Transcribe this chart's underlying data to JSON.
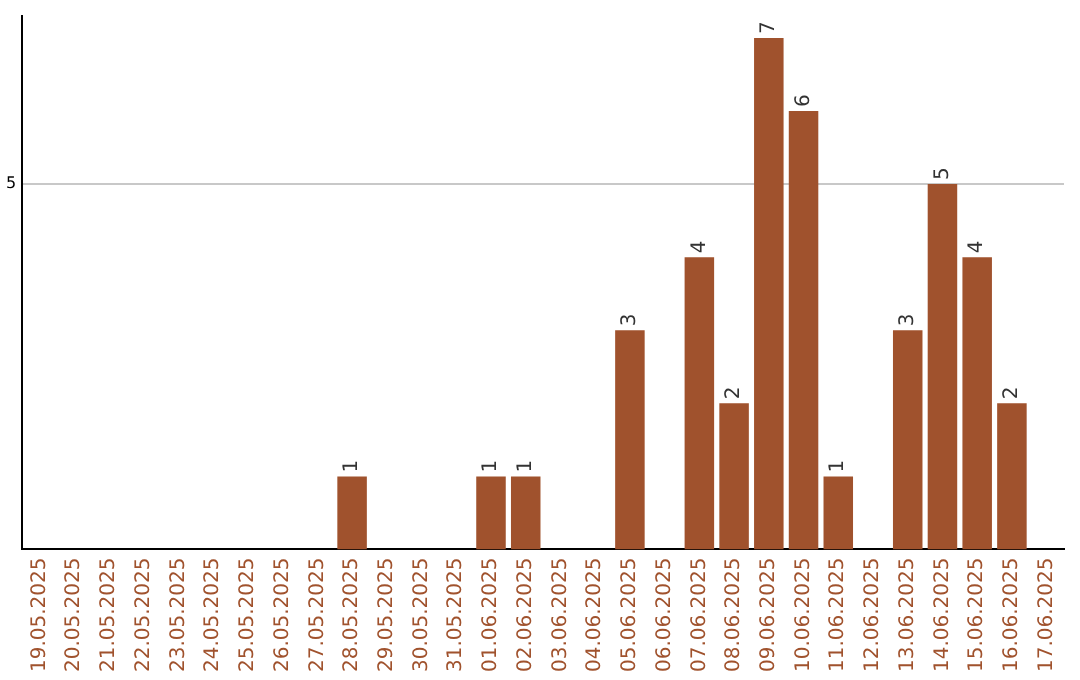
{
  "chart_data": {
    "type": "bar",
    "categories": [
      "19.05.2025",
      "20.05.2025",
      "21.05.2025",
      "22.05.2025",
      "23.05.2025",
      "24.05.2025",
      "25.05.2025",
      "26.05.2025",
      "27.05.2025",
      "28.05.2025",
      "29.05.2025",
      "30.05.2025",
      "31.05.2025",
      "01.06.2025",
      "02.06.2025",
      "03.06.2025",
      "04.06.2025",
      "05.06.2025",
      "06.06.2025",
      "07.06.2025",
      "08.06.2025",
      "09.06.2025",
      "10.06.2025",
      "11.06.2025",
      "12.06.2025",
      "13.06.2025",
      "14.06.2025",
      "15.06.2025",
      "16.06.2025",
      "17.06.2025"
    ],
    "values": [
      null,
      null,
      null,
      null,
      null,
      null,
      null,
      null,
      null,
      1,
      null,
      null,
      null,
      1,
      1,
      null,
      null,
      3,
      null,
      4,
      2,
      7,
      6,
      1,
      null,
      3,
      5,
      4,
      2,
      null
    ],
    "color": "#a0522d",
    "ylim": [
      0,
      7.3
    ],
    "yticks": [
      5
    ],
    "grid": "y",
    "data_labels": true,
    "legend": false
  }
}
